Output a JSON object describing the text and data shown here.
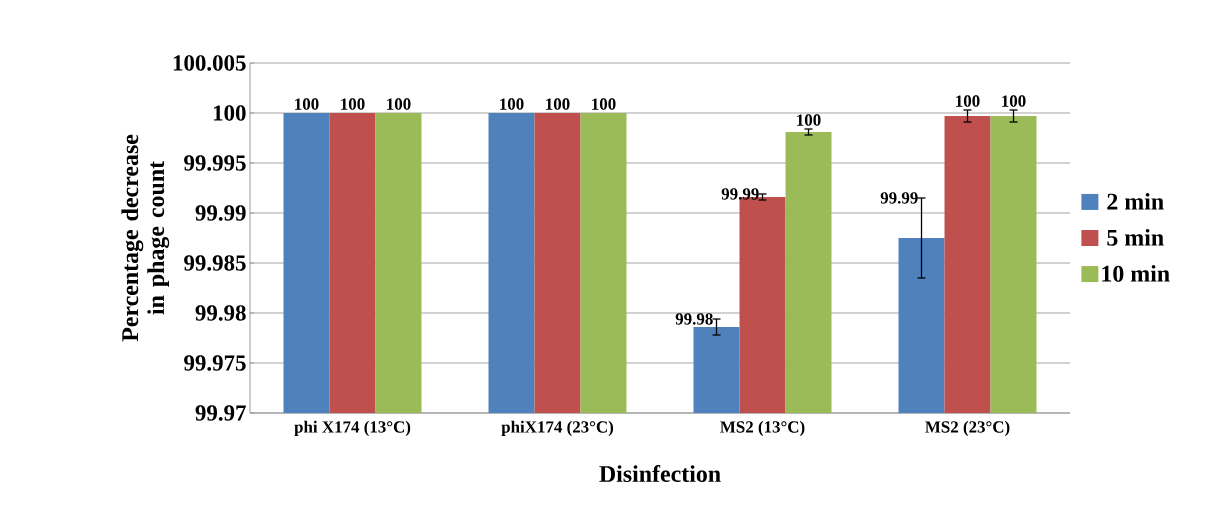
{
  "chart_data": {
    "type": "bar",
    "xlabel": "Disinfection",
    "ylabel": "Percentage decrease in phage count",
    "categories": [
      "phi X174 (13°C)",
      "phiX174  (23°C)",
      "MS2 (13°C)",
      "MS2  (23°C)"
    ],
    "series": [
      {
        "name": "2 min",
        "color": "#4f81bd",
        "values": [
          100,
          100,
          99.9786,
          99.9875
        ],
        "errors": [
          null,
          null,
          0.0008,
          0.004
        ],
        "value_labels": [
          "100",
          "100",
          "99.98",
          "99.99"
        ]
      },
      {
        "name": "5 min",
        "color": "#c0504d",
        "values": [
          100,
          100,
          99.9916,
          99.9997
        ],
        "errors": [
          null,
          null,
          0.0003,
          0.0006
        ],
        "value_labels": [
          "100",
          "100",
          "99.99",
          "100"
        ]
      },
      {
        "name": "10 min",
        "color": "#9bbb59",
        "values": [
          100,
          100,
          99.9981,
          99.9997
        ],
        "errors": [
          null,
          null,
          0.0003,
          0.0006
        ],
        "value_labels": [
          "100",
          "100",
          "100",
          "100"
        ]
      }
    ],
    "ylim": [
      99.97,
      100.005
    ],
    "yticks": [
      99.97,
      99.975,
      99.98,
      99.985,
      99.99,
      99.995,
      100,
      100.005
    ],
    "grid": "y",
    "legend": "right"
  }
}
